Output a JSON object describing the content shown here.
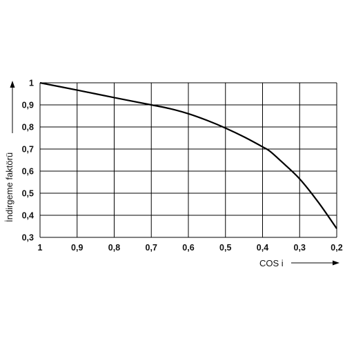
{
  "chart_data": {
    "type": "line",
    "title": "",
    "xlabel": "COS i",
    "ylabel": "İndirgeme faktörü",
    "x_direction": "decreasing",
    "xlim": [
      1,
      0.2
    ],
    "ylim": [
      0.3,
      1
    ],
    "x_ticks": [
      1,
      0.9,
      0.8,
      0.7,
      0.6,
      0.5,
      0.4,
      0.3,
      0.2
    ],
    "y_ticks": [
      0.3,
      0.4,
      0.5,
      0.6,
      0.7,
      0.8,
      0.9,
      1
    ],
    "x_tick_labels": [
      "1",
      "0,9",
      "0,8",
      "0,7",
      "0,6",
      "0,5",
      "0,4",
      "0,3",
      "0,2"
    ],
    "y_tick_labels": [
      "0,3",
      "0,4",
      "0,5",
      "0,6",
      "0,7",
      "0,8",
      "0,9",
      "1"
    ],
    "grid": true,
    "series": [
      {
        "x": [
          1,
          0.9,
          0.8,
          0.7,
          0.65,
          0.6,
          0.55,
          0.5,
          0.45,
          0.4,
          0.38,
          0.35,
          0.3,
          0.25,
          0.2
        ],
        "y": [
          1,
          0.967,
          0.933,
          0.9,
          0.883,
          0.86,
          0.83,
          0.795,
          0.755,
          0.71,
          0.69,
          0.645,
          0.565,
          0.46,
          0.34
        ]
      }
    ]
  }
}
